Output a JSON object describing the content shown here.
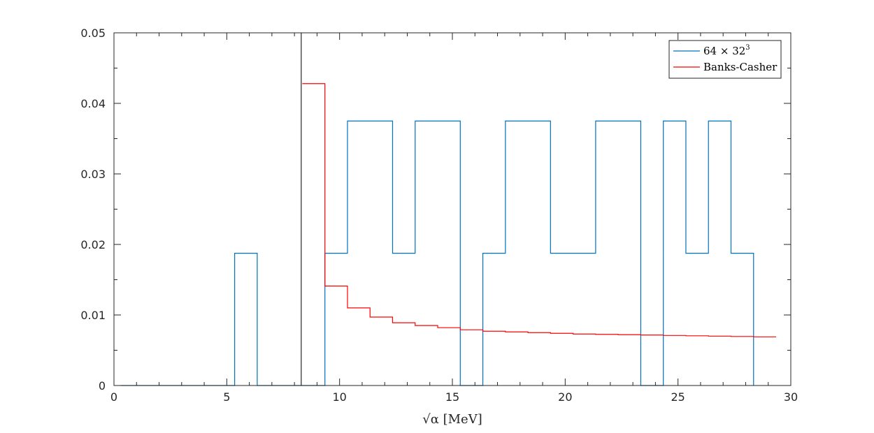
{
  "chart_data": {
    "type": "line",
    "xlabel": "√α [MeV]",
    "xlim": [
      0,
      30
    ],
    "ylim": [
      0,
      0.05
    ],
    "xticks": [
      0,
      5,
      10,
      15,
      20,
      25,
      30
    ],
    "yticks": [
      0,
      0.01,
      0.02,
      0.03,
      0.04,
      0.05
    ],
    "xtick_labels": [
      "0",
      "5",
      "10",
      "15",
      "20",
      "25",
      "30"
    ],
    "ytick_labels": [
      "0",
      "0.01",
      "0.02",
      "0.03",
      "0.04",
      "0.05"
    ],
    "vertical_line_x": 8.3,
    "grid": false,
    "box": true,
    "legend_position": "top-right",
    "series": [
      {
        "name": "64 × 32³",
        "name_base": "64 × 32",
        "name_sup": "3",
        "color": "#0072BD",
        "style": "stairs",
        "points": [
          [
            0.3,
            0
          ],
          [
            5.35,
            0
          ],
          [
            5.35,
            0.01875
          ],
          [
            6.35,
            0.01875
          ],
          [
            6.35,
            0
          ],
          [
            9.35,
            0
          ],
          [
            9.35,
            0.01875
          ],
          [
            10.35,
            0.01875
          ],
          [
            10.35,
            0.0375
          ],
          [
            12.35,
            0.0375
          ],
          [
            12.35,
            0.01875
          ],
          [
            13.35,
            0.01875
          ],
          [
            13.35,
            0.0375
          ],
          [
            15.35,
            0.0375
          ],
          [
            15.35,
            0
          ],
          [
            16.35,
            0
          ],
          [
            16.35,
            0.01875
          ],
          [
            17.35,
            0.01875
          ],
          [
            17.35,
            0.0375
          ],
          [
            19.35,
            0.0375
          ],
          [
            19.35,
            0.01875
          ],
          [
            21.35,
            0.01875
          ],
          [
            21.35,
            0.0375
          ],
          [
            23.35,
            0.0375
          ],
          [
            23.35,
            0
          ],
          [
            24.35,
            0
          ],
          [
            24.35,
            0.0375
          ],
          [
            25.35,
            0.0375
          ],
          [
            25.35,
            0.01875
          ],
          [
            26.35,
            0.01875
          ],
          [
            26.35,
            0.0375
          ],
          [
            27.35,
            0.0375
          ],
          [
            27.35,
            0.01875
          ],
          [
            28.35,
            0.01875
          ],
          [
            28.35,
            0
          ]
        ]
      },
      {
        "name": "Banks-Casher",
        "color": "#FF0000",
        "style": "stairs",
        "points": [
          [
            8.35,
            0.0428
          ],
          [
            9.35,
            0.0428
          ],
          [
            9.35,
            0.0141
          ],
          [
            10.35,
            0.0141
          ],
          [
            10.35,
            0.011
          ],
          [
            11.35,
            0.011
          ],
          [
            11.35,
            0.0097
          ],
          [
            12.35,
            0.0097
          ],
          [
            12.35,
            0.0089
          ],
          [
            13.35,
            0.0089
          ],
          [
            13.35,
            0.0085
          ],
          [
            14.35,
            0.0085
          ],
          [
            14.35,
            0.0082
          ],
          [
            15.35,
            0.0082
          ],
          [
            15.35,
            0.0079
          ],
          [
            16.35,
            0.0079
          ],
          [
            16.35,
            0.0077
          ],
          [
            17.35,
            0.0077
          ],
          [
            17.35,
            0.0076
          ],
          [
            18.35,
            0.0076
          ],
          [
            18.35,
            0.0075
          ],
          [
            19.35,
            0.0075
          ],
          [
            19.35,
            0.0074
          ],
          [
            20.35,
            0.0074
          ],
          [
            20.35,
            0.0073
          ],
          [
            21.35,
            0.0073
          ],
          [
            21.35,
            0.00725
          ],
          [
            22.35,
            0.00725
          ],
          [
            22.35,
            0.0072
          ],
          [
            23.35,
            0.0072
          ],
          [
            23.35,
            0.00715
          ],
          [
            24.35,
            0.00715
          ],
          [
            24.35,
            0.0071
          ],
          [
            25.35,
            0.0071
          ],
          [
            25.35,
            0.00705
          ],
          [
            26.35,
            0.00705
          ],
          [
            26.35,
            0.007
          ],
          [
            27.35,
            0.007
          ],
          [
            27.35,
            0.00695
          ],
          [
            28.35,
            0.00695
          ],
          [
            28.35,
            0.0069
          ],
          [
            29.35,
            0.0069
          ]
        ]
      }
    ]
  }
}
